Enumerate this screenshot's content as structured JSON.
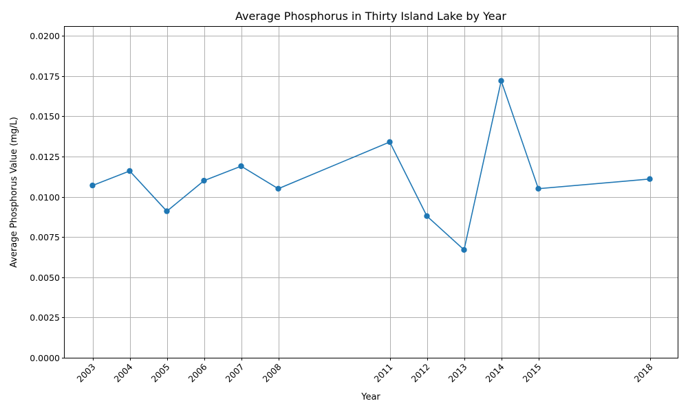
{
  "chart_data": {
    "type": "line",
    "title": "Average Phosphorus in Thirty Island Lake by Year",
    "xlabel": "Year",
    "ylabel": "Average Phosphorus Value (mg/L)",
    "x": [
      2003,
      2004,
      2005,
      2006,
      2007,
      2008,
      2011,
      2012,
      2013,
      2014,
      2015,
      2018
    ],
    "xticks": [
      "2003",
      "2004",
      "2005",
      "2006",
      "2007",
      "2008",
      "2011",
      "2012",
      "2013",
      "2014",
      "2015",
      "2018"
    ],
    "series": [
      {
        "values": [
          0.0107,
          0.0116,
          0.0091,
          0.011,
          0.0119,
          0.0105,
          0.0134,
          0.0088,
          0.0067,
          0.0172,
          0.0105,
          0.0111
        ],
        "color": "#1f77b4",
        "marker": "circle"
      }
    ],
    "xlim": [
      2002.25,
      2018.75
    ],
    "ylim": [
      0,
      0.0206
    ],
    "yticks": [
      "0.0000",
      "0.0025",
      "0.0050",
      "0.0075",
      "0.0100",
      "0.0125",
      "0.0150",
      "0.0175",
      "0.0200"
    ],
    "ytick_values": [
      0,
      0.0025,
      0.005,
      0.0075,
      0.01,
      0.0125,
      0.015,
      0.0175,
      0.02
    ],
    "grid": true,
    "xtick_rotation": 45
  }
}
